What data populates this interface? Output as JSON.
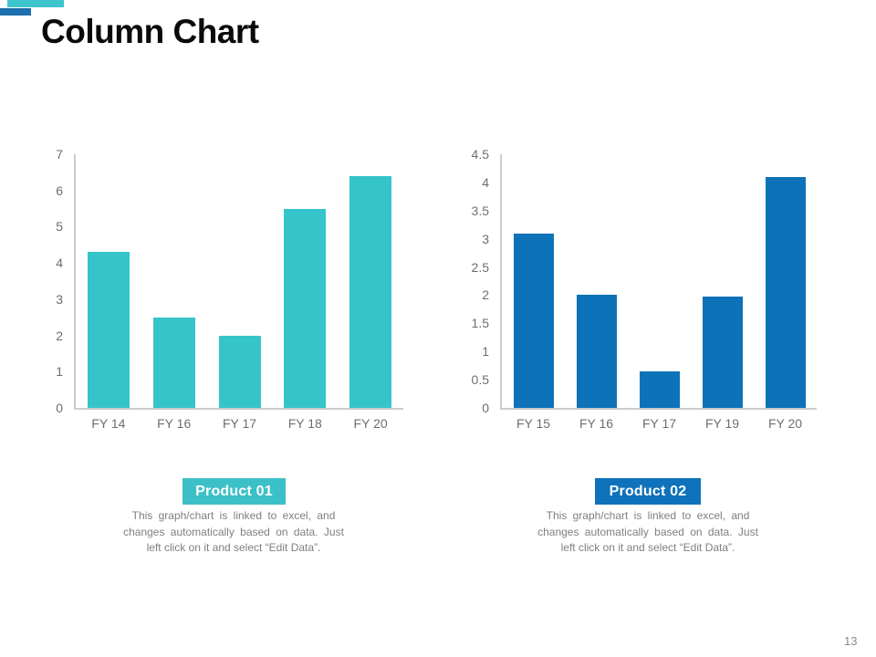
{
  "title": "Column Chart",
  "page_number": "13",
  "decoration": {
    "teal_bar": "#3ec5cb",
    "blue_bar": "#1d6fae"
  },
  "chart_data": [
    {
      "type": "bar",
      "product_label": "Product 01",
      "badge_color": "#3bc0c8",
      "bar_color": "#35c4c9",
      "categories": [
        "FY 14",
        "FY 16",
        "FY 17",
        "FY 18",
        "FY 20"
      ],
      "values": [
        4.3,
        2.5,
        2,
        5.5,
        6.4
      ],
      "ylim": [
        0,
        7
      ],
      "yticks": [
        "0",
        "1",
        "2",
        "3",
        "4",
        "5",
        "6",
        "7"
      ],
      "grid": false,
      "legend": "none",
      "note_lines": [
        "This graph/chart is linked to excel, and",
        "changes automatically based on data. Just",
        "left click on it and select “Edit Data”."
      ]
    },
    {
      "type": "bar",
      "product_label": "Product 02",
      "badge_color": "#0f72ba",
      "bar_color": "#0e72b8",
      "categories": [
        "FY 15",
        "FY 16",
        "FY 17",
        "FY 19",
        "FY 20"
      ],
      "values": [
        3.1,
        2,
        0.65,
        1.97,
        4.1
      ],
      "ylim": [
        0,
        4.5
      ],
      "yticks": [
        "0",
        "0.5",
        "1",
        "1.5",
        "2",
        "2.5",
        "3",
        "3.5",
        "4",
        "4.5"
      ],
      "grid": false,
      "legend": "none",
      "note_lines": [
        "This graph/chart is linked to excel, and",
        "changes automatically based on data. Just",
        "left click on it and select “Edit Data”."
      ]
    }
  ]
}
